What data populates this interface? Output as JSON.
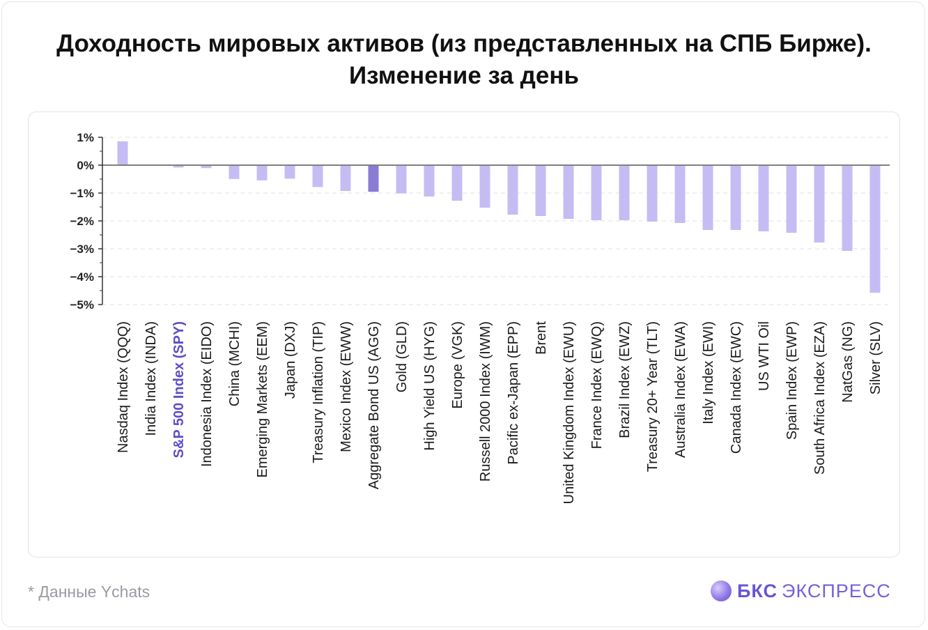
{
  "title": "Доходность мировых активов (из представленных на СПБ Бирже). Изменение за день",
  "footnote": "* Данные Ychats",
  "logo": {
    "brand": "БКС",
    "product": "ЭКСПРЕСС",
    "icon": "bks-logo-icon"
  },
  "colors": {
    "bar": "#c6bcf4",
    "bar_highlight": "#8a7bd4",
    "label_highlight": "#5d4ec6",
    "axis": "#333333",
    "grid": "#e2e2e8"
  },
  "chart_data": {
    "type": "bar",
    "y_unit": "%",
    "ylim": [
      -5,
      1
    ],
    "y_ticks": [
      "1%",
      "0%",
      "−1%",
      "−2%",
      "−3%",
      "−4%",
      "−5%"
    ],
    "grid": true,
    "categories": [
      "Nasdaq Index (QQQ)",
      "India Index (INDA)",
      "S&P 500 Index (SPY)",
      "Indonesia Index (EIDO)",
      "China (MCHI)",
      "Emerging Markets (EEM)",
      "Japan (DXJ)",
      "Treasury Inflation (TIP)",
      "Mexico Index (EWW)",
      "Aggregate Bond US (AGG)",
      "Gold (GLD)",
      "High Yield US (HYG)",
      "Europe (VGK)",
      "Russell 2000 Index (IWM)",
      "Pacific ex-Japan (EPP)",
      "Brent",
      "United Kingdom Index (EWU)",
      "France Index (EWQ)",
      "Brazil Index (EWZ)",
      "Treasury 20+ Year (TLT)",
      "Australia Index (EWA)",
      "Italy Index (EWI)",
      "Canada Index (EWC)",
      "US WTI Oil",
      "Spain Index (EWP)",
      "South Africa Index (EZA)",
      "NatGas (NG)",
      "Silver (SLV)"
    ],
    "values": [
      0.83,
      0,
      -0.06,
      -0.08,
      -0.47,
      -0.52,
      -0.46,
      -0.76,
      -0.9,
      -0.93,
      -0.99,
      -1.1,
      -1.25,
      -1.5,
      -1.75,
      -1.8,
      -1.9,
      -1.95,
      -1.95,
      -2.0,
      -2.05,
      -2.3,
      -2.3,
      -2.35,
      -2.4,
      -2.75,
      -3.05,
      -4.55
    ],
    "highlight_bar": "Aggregate Bond US (AGG)",
    "highlight_label": "S&P 500 Index (SPY)"
  }
}
